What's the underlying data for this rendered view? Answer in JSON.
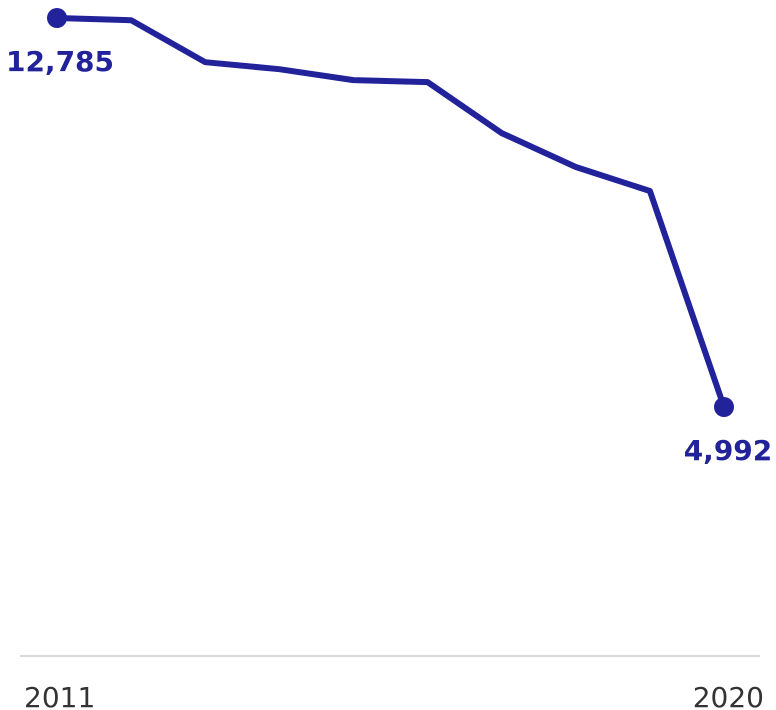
{
  "chart_data": {
    "type": "line",
    "x": [
      "2011",
      "2012",
      "2013",
      "2014",
      "2015",
      "2016",
      "2017",
      "2018",
      "2019",
      "2020"
    ],
    "series": [
      {
        "values": [
          12785,
          12740,
          11900,
          11760,
          11540,
          11500,
          10480,
          9800,
          9320,
          4992
        ]
      }
    ],
    "data_labels": {
      "first": "12,785",
      "last": "4,992"
    },
    "x_tick_labels": [
      "2011",
      "2020"
    ],
    "ylim": [
      0,
      13000
    ],
    "grid": false,
    "colors": {
      "line": "#22229a",
      "axis": "#d9d9d9",
      "tick_text": "#333333"
    }
  }
}
